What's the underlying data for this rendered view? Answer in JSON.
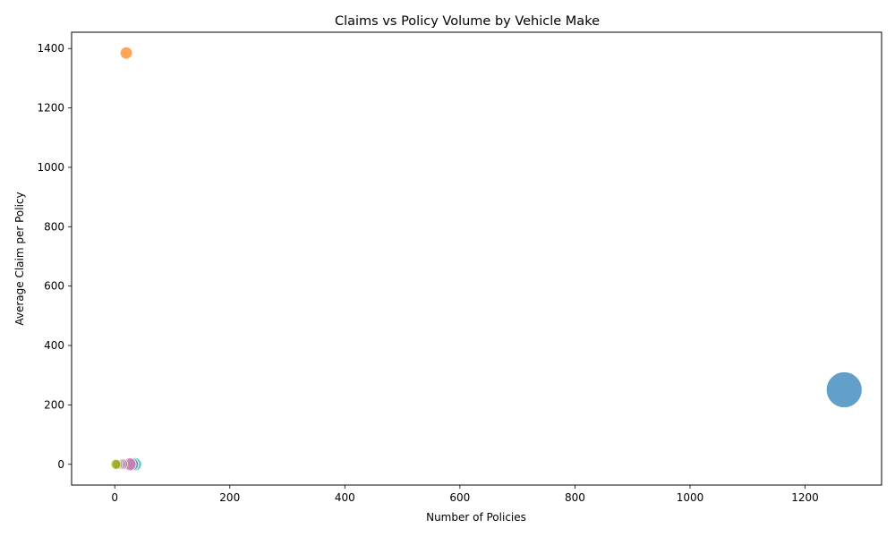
{
  "chart_data": {
    "type": "scatter",
    "title": "Claims vs Policy Volume by Vehicle Make",
    "xlabel": "Number of Policies",
    "ylabel": "Average Claim per Policy",
    "xlim": [
      -75,
      1333
    ],
    "ylim": [
      -70,
      1455
    ],
    "xticks": [
      0,
      200,
      400,
      600,
      800,
      1000,
      1200
    ],
    "yticks": [
      0,
      200,
      400,
      600,
      800,
      1000,
      1200,
      1400
    ],
    "grid": false,
    "legend": false,
    "points": [
      {
        "x": 1268,
        "y": 251,
        "size": 1268,
        "color": "#1f77b4"
      },
      {
        "x": 20,
        "y": 1385,
        "size": 20,
        "color": "#ff7f0e"
      },
      {
        "x": 4,
        "y": 0,
        "size": 4,
        "color": "#2ca02c"
      },
      {
        "x": 6,
        "y": 0,
        "size": 6,
        "color": "#d62728"
      },
      {
        "x": 9,
        "y": 0,
        "size": 9,
        "color": "#9467bd"
      },
      {
        "x": 12,
        "y": 0,
        "size": 12,
        "color": "#8c564b"
      },
      {
        "x": 26,
        "y": 0,
        "size": 26,
        "color": "#e377c2"
      },
      {
        "x": 30,
        "y": 0,
        "size": 30,
        "color": "#7f7f7f"
      },
      {
        "x": 35,
        "y": 0,
        "size": 35,
        "color": "#17becf"
      },
      {
        "x": 2,
        "y": 0,
        "size": 2,
        "color": "#bcbd22"
      }
    ]
  }
}
